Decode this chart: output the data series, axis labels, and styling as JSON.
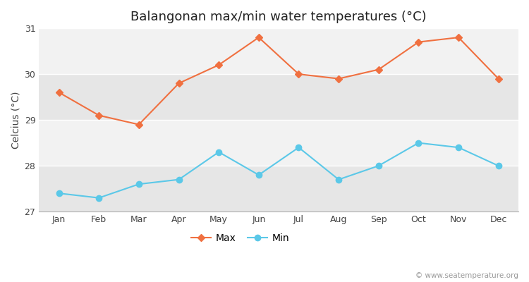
{
  "title": "Balangonan max/min water temperatures (°C)",
  "ylabel": "Celcius (°C)",
  "months": [
    "Jan",
    "Feb",
    "Mar",
    "Apr",
    "May",
    "Jun",
    "Jul",
    "Aug",
    "Sep",
    "Oct",
    "Nov",
    "Dec"
  ],
  "max_temps": [
    29.6,
    29.1,
    28.9,
    29.8,
    30.2,
    30.8,
    30.0,
    29.9,
    30.1,
    30.7,
    30.8,
    29.9
  ],
  "min_temps": [
    27.4,
    27.3,
    27.6,
    27.7,
    28.3,
    27.8,
    28.4,
    27.7,
    28.0,
    28.5,
    28.4,
    28.0
  ],
  "max_color": "#f07040",
  "min_color": "#5bc8e8",
  "ylim": [
    27.0,
    31.0
  ],
  "yticks": [
    27,
    28,
    29,
    30,
    31
  ],
  "fig_bg_color": "#ffffff",
  "plot_bg_light": "#ececec",
  "plot_bg_dark": "#e0e0e0",
  "band_light": "#f2f2f2",
  "band_dark": "#e6e6e6",
  "watermark": "© www.seatemperature.org",
  "legend_max": "Max",
  "legend_min": "Min",
  "title_fontsize": 13,
  "label_fontsize": 10,
  "tick_fontsize": 9,
  "watermark_fontsize": 7.5,
  "max_marker": "D",
  "min_marker": "o",
  "max_markersize": 5,
  "min_markersize": 6,
  "linewidth": 1.5
}
